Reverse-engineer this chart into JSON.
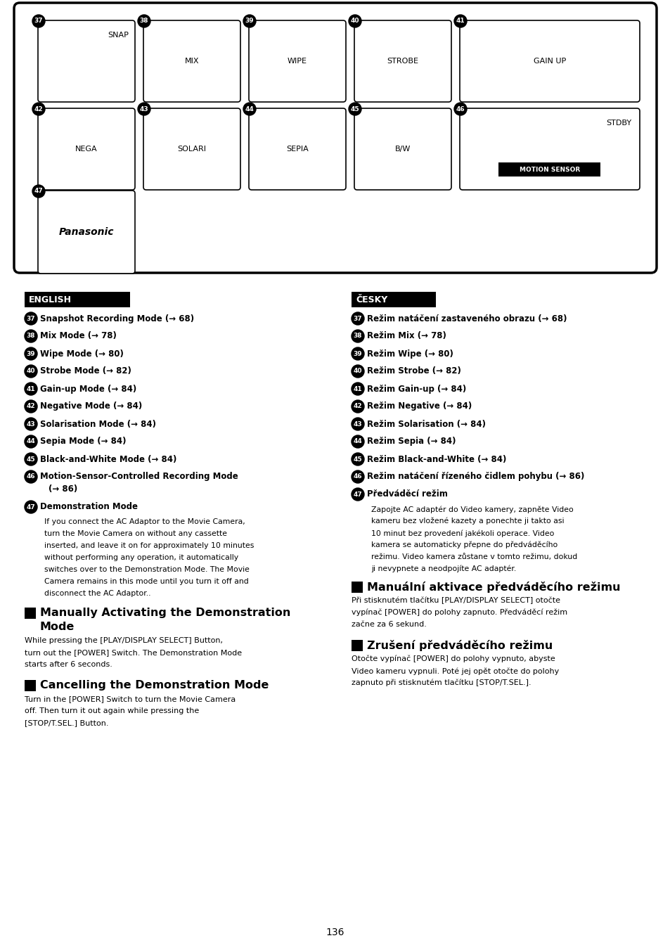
{
  "page_bg": "#ffffff",
  "page_number": "136",
  "english": {
    "header": "ENGLISH",
    "items": [
      {
        "num": "37",
        "text": "Snapshot Recording Mode (→ 68)"
      },
      {
        "num": "38",
        "text": "Mix Mode (→ 78)"
      },
      {
        "num": "39",
        "text": "Wipe Mode (→ 80)"
      },
      {
        "num": "40",
        "text": "Strobe Mode (→ 82)"
      },
      {
        "num": "41",
        "text": "Gain-up Mode (→ 84)"
      },
      {
        "num": "42",
        "text": "Negative Mode (→ 84)"
      },
      {
        "num": "43",
        "text": "Solarisation Mode (→ 84)"
      },
      {
        "num": "44",
        "text": "Sepia Mode (→ 84)"
      },
      {
        "num": "45",
        "text": "Black-and-White Mode (→ 84)"
      },
      {
        "num": "46",
        "line1": "Motion-Sensor-Controlled Recording Mode",
        "line2": "(→ 86)"
      },
      {
        "num": "47",
        "bold": "Demonstration Mode",
        "body": "If you connect the AC Adaptor to the Movie Camera,\nturn the Movie Camera on without any cassette\ninserted, and leave it on for approximately 10 minutes\nwithout performing any operation, it automatically\nswitches over to the Demonstration Mode. The Movie\nCamera remains in this mode until you turn it off and\ndisconnect the AC Adaptor.."
      }
    ],
    "manually_title": "Manually Activating the Demonstration\nMode",
    "manually_body": "While pressing the [PLAY/DISPLAY SELECT] Button,\nturn out the [POWER] Switch. The Demonstration Mode\nstarts after 6 seconds.",
    "cancelling_title": "Cancelling the Demonstration Mode",
    "cancelling_body": "Turn in the [POWER] Switch to turn the Movie Camera\noff. Then turn it out again while pressing the\n[STOP/T.SEL.] Button."
  },
  "czech": {
    "header": "ČESKY",
    "items": [
      {
        "num": "37",
        "text": "Režim natáčení zastaveného obrazu (→ 68)"
      },
      {
        "num": "38",
        "text": "Režim Mix (→ 78)"
      },
      {
        "num": "39",
        "text": "Režim Wipe (→ 80)"
      },
      {
        "num": "40",
        "text": "Režim Strobe (→ 82)"
      },
      {
        "num": "41",
        "text": "Režim Gain-up (→ 84)"
      },
      {
        "num": "42",
        "text": "Režim Negative (→ 84)"
      },
      {
        "num": "43",
        "text": "Režim Solarisation (→ 84)"
      },
      {
        "num": "44",
        "text": "Režim Sepia (→ 84)"
      },
      {
        "num": "45",
        "text": "Režim Black-and-White (→ 84)"
      },
      {
        "num": "46",
        "text": "Režim natáčení řízeného čidlem pohybu (→ 86)"
      },
      {
        "num": "47",
        "bold": "Předváděcí režim",
        "body": "Zapojte AC adaptér do Video kamery, zapněte Video\nkameru bez vložené kazety a ponechte ji takto asi\n10 minut bez provedení jakékoli operace. Video\nkamera se automaticky přepne do předváděcího\nrežimu. Video kamera zůstane v tomto režimu, dokud\nji nevypnete a neodpojíte AC adaptér."
      }
    ],
    "manually_title": "Manuální aktivace předváděcího režimu",
    "manually_body": "Při stisknutém tlačítku [PLAY/DISPLAY SELECT] otočte\nvypínač [POWER] do polohy zapnuto. Předváděcí režim\nzačne za 6 sekund.",
    "cancelling_title": "Zrušení předváděcího režimu",
    "cancelling_body": "Otočte vypínač [POWER] do polohy vypnuto, abyste\nVideo kameru vypnuli. Poté jej opět otočte do polohy\nzapnuto při stisknutém tlačítku [STOP/T.SEL.]."
  }
}
